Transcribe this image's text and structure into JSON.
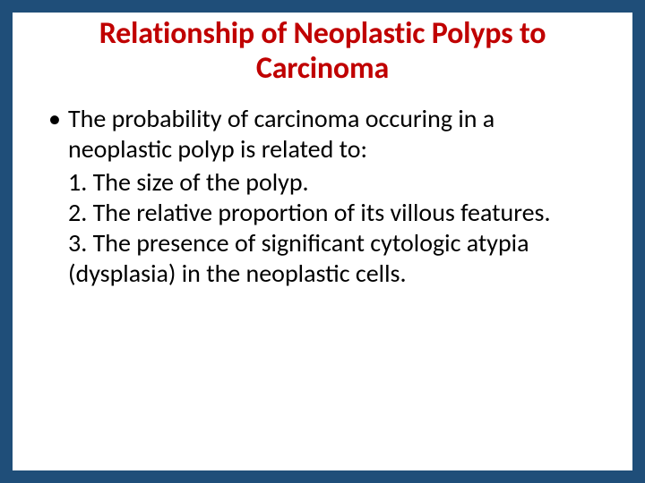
{
  "colors": {
    "border": "#1f4e79",
    "background": "#ffffff",
    "title": "#c00000",
    "body_text": "#000000"
  },
  "typography": {
    "title_fontsize_pt": 32,
    "title_weight": "bold",
    "body_fontsize_pt": 26,
    "font_family": "Calibri"
  },
  "title": "Relationship of Neoplastic Polyps to Carcinoma",
  "bullet_lead": "The probability of carcinoma occuring in a neoplastic polyp is related to:",
  "items": [
    "1. The size of the polyp.",
    "2. The relative proportion of its villous features.",
    "3. The presence of significant cytologic atypia (dysplasia) in the neoplastic cells."
  ]
}
